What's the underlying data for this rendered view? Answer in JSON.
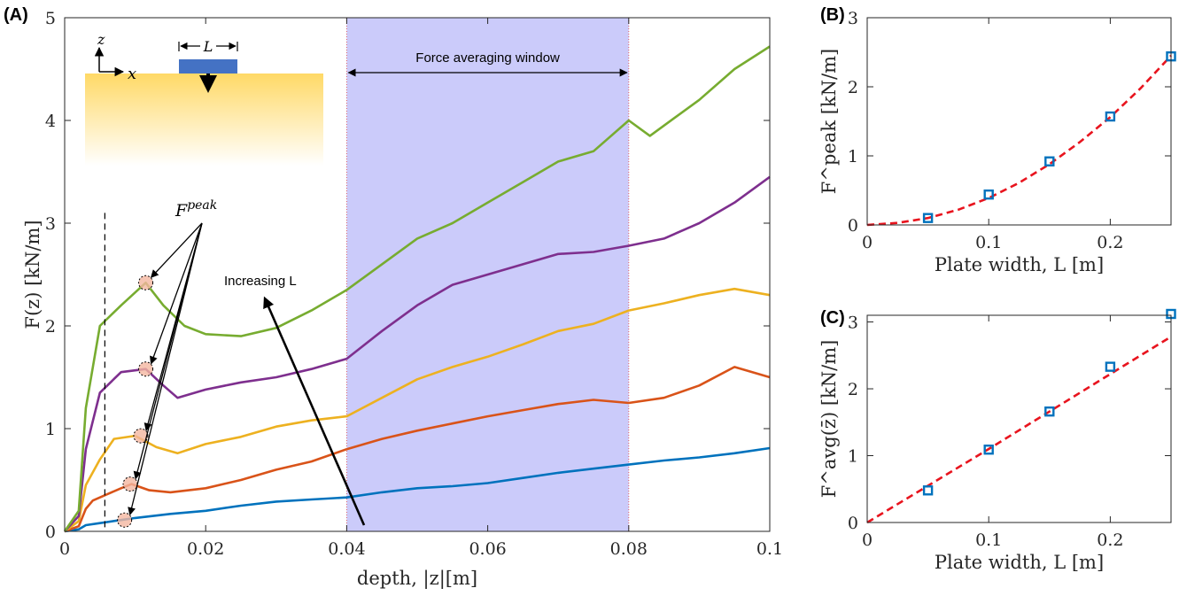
{
  "panels": {
    "a": {
      "label": "(A)"
    },
    "b": {
      "label": "(B)"
    },
    "c": {
      "label": "(C)"
    }
  },
  "colors": {
    "series": [
      "#0072BD",
      "#D95319",
      "#EDB120",
      "#7E2F8E",
      "#77AC30"
    ],
    "window": "#C8C8FA",
    "fit": "#E8141E",
    "marker": "#0072BD",
    "ground_top": "#FFD966",
    "plate": "#4472C4"
  },
  "annotations": {
    "window_text": "Force averaging window",
    "increasing_text": "Increasing L",
    "fpeak_text": "F",
    "fpeak_sup": "peak",
    "inset_z": "z",
    "inset_x": "x",
    "inset_L": "L"
  },
  "chart_data": [
    {
      "id": "A",
      "type": "line",
      "xlabel": "depth, |z|[m]",
      "ylabel": "F(z)  [kN/m]",
      "xlim": [
        0,
        0.1
      ],
      "ylim": [
        0,
        5
      ],
      "xticks": [
        "0",
        "0.02",
        "0.04",
        "0.06",
        "0.08",
        "0.1"
      ],
      "yticks": [
        "0",
        "1",
        "2",
        "3",
        "4",
        "5"
      ],
      "shaded_window": [
        0.04,
        0.08
      ],
      "dashed_line_x": 0.0057,
      "grid": false,
      "series": [
        {
          "x": [
            0,
            0.002,
            0.003,
            0.005,
            0.008,
            0.01,
            0.015,
            0.02,
            0.025,
            0.03,
            0.035,
            0.04,
            0.045,
            0.05,
            0.055,
            0.06,
            0.065,
            0.07,
            0.075,
            0.08,
            0.085,
            0.09,
            0.095,
            0.1
          ],
          "y": [
            0,
            0.02,
            0.06,
            0.08,
            0.11,
            0.13,
            0.17,
            0.2,
            0.25,
            0.29,
            0.31,
            0.33,
            0.38,
            0.42,
            0.44,
            0.47,
            0.52,
            0.57,
            0.61,
            0.65,
            0.69,
            0.72,
            0.76,
            0.81
          ]
        },
        {
          "x": [
            0,
            0.002,
            0.003,
            0.004,
            0.006,
            0.008,
            0.0095,
            0.012,
            0.015,
            0.02,
            0.025,
            0.03,
            0.035,
            0.04,
            0.045,
            0.05,
            0.055,
            0.06,
            0.065,
            0.07,
            0.075,
            0.08,
            0.085,
            0.09,
            0.095,
            0.1
          ],
          "y": [
            0,
            0.05,
            0.22,
            0.3,
            0.36,
            0.42,
            0.46,
            0.4,
            0.38,
            0.42,
            0.5,
            0.6,
            0.68,
            0.8,
            0.9,
            0.98,
            1.05,
            1.12,
            1.18,
            1.24,
            1.28,
            1.25,
            1.3,
            1.42,
            1.6,
            1.5
          ]
        },
        {
          "x": [
            0,
            0.002,
            0.003,
            0.005,
            0.007,
            0.01,
            0.013,
            0.016,
            0.02,
            0.025,
            0.03,
            0.035,
            0.04,
            0.045,
            0.05,
            0.055,
            0.06,
            0.065,
            0.07,
            0.075,
            0.08,
            0.085,
            0.09,
            0.095,
            0.1
          ],
          "y": [
            0,
            0.1,
            0.45,
            0.7,
            0.9,
            0.93,
            0.82,
            0.76,
            0.85,
            0.92,
            1.02,
            1.08,
            1.12,
            1.3,
            1.48,
            1.6,
            1.7,
            1.82,
            1.95,
            2.02,
            2.15,
            2.22,
            2.3,
            2.36,
            2.3
          ]
        },
        {
          "x": [
            0,
            0.002,
            0.003,
            0.005,
            0.008,
            0.0115,
            0.014,
            0.016,
            0.02,
            0.025,
            0.03,
            0.035,
            0.04,
            0.045,
            0.05,
            0.055,
            0.06,
            0.065,
            0.07,
            0.075,
            0.08,
            0.085,
            0.09,
            0.095,
            0.1
          ],
          "y": [
            0,
            0.15,
            0.8,
            1.35,
            1.55,
            1.58,
            1.42,
            1.3,
            1.38,
            1.45,
            1.5,
            1.58,
            1.68,
            1.95,
            2.2,
            2.4,
            2.5,
            2.6,
            2.7,
            2.72,
            2.78,
            2.85,
            3.0,
            3.2,
            3.45
          ]
        },
        {
          "x": [
            0,
            0.002,
            0.003,
            0.005,
            0.008,
            0.0115,
            0.014,
            0.017,
            0.02,
            0.025,
            0.03,
            0.035,
            0.04,
            0.045,
            0.05,
            0.055,
            0.06,
            0.065,
            0.07,
            0.075,
            0.08,
            0.083,
            0.085,
            0.09,
            0.095,
            0.1
          ],
          "y": [
            0,
            0.2,
            1.2,
            2.0,
            2.2,
            2.42,
            2.2,
            2.0,
            1.92,
            1.9,
            1.98,
            2.15,
            2.35,
            2.6,
            2.85,
            3.0,
            3.2,
            3.4,
            3.6,
            3.7,
            4.0,
            3.85,
            3.95,
            4.2,
            4.5,
            4.72
          ]
        }
      ],
      "peaks": [
        {
          "x": 0.0085,
          "y": 0.11
        },
        {
          "x": 0.0093,
          "y": 0.46
        },
        {
          "x": 0.0108,
          "y": 0.93
        },
        {
          "x": 0.0115,
          "y": 1.58
        },
        {
          "x": 0.0115,
          "y": 2.42
        }
      ]
    },
    {
      "id": "B",
      "type": "scatter",
      "xlabel": "Plate width, L [m]",
      "ylabel": "F^peak [kN/m]",
      "xlim": [
        0,
        0.25
      ],
      "ylim": [
        0,
        3
      ],
      "xticks": [
        "0",
        "0.1",
        "0.2"
      ],
      "yticks": [
        "0",
        "1",
        "2",
        "3"
      ],
      "points": {
        "x": [
          0.05,
          0.1,
          0.15,
          0.2,
          0.25
        ],
        "y": [
          0.1,
          0.44,
          0.92,
          1.57,
          2.44
        ]
      },
      "fit": {
        "x": [
          0,
          0.025,
          0.05,
          0.075,
          0.1,
          0.125,
          0.15,
          0.175,
          0.2,
          0.225,
          0.25
        ],
        "y": [
          0,
          0.03,
          0.1,
          0.22,
          0.39,
          0.61,
          0.88,
          1.2,
          1.56,
          1.98,
          2.45
        ]
      }
    },
    {
      "id": "C",
      "type": "scatter",
      "xlabel": "Plate width, L [m]",
      "ylabel": "F^avg(z̄) [kN/m]",
      "xlim": [
        0,
        0.25
      ],
      "ylim": [
        0,
        3.1
      ],
      "xticks": [
        "0",
        "0.1",
        "0.2"
      ],
      "yticks": [
        "0",
        "1",
        "2",
        "3"
      ],
      "points": {
        "x": [
          0.05,
          0.1,
          0.15,
          0.2,
          0.25
        ],
        "y": [
          0.48,
          1.09,
          1.66,
          2.33,
          3.12
        ]
      },
      "fit": {
        "x": [
          0,
          0.05,
          0.1,
          0.15,
          0.2,
          0.25
        ],
        "y": [
          0,
          0.55,
          1.1,
          1.66,
          2.22,
          2.78
        ]
      }
    }
  ]
}
